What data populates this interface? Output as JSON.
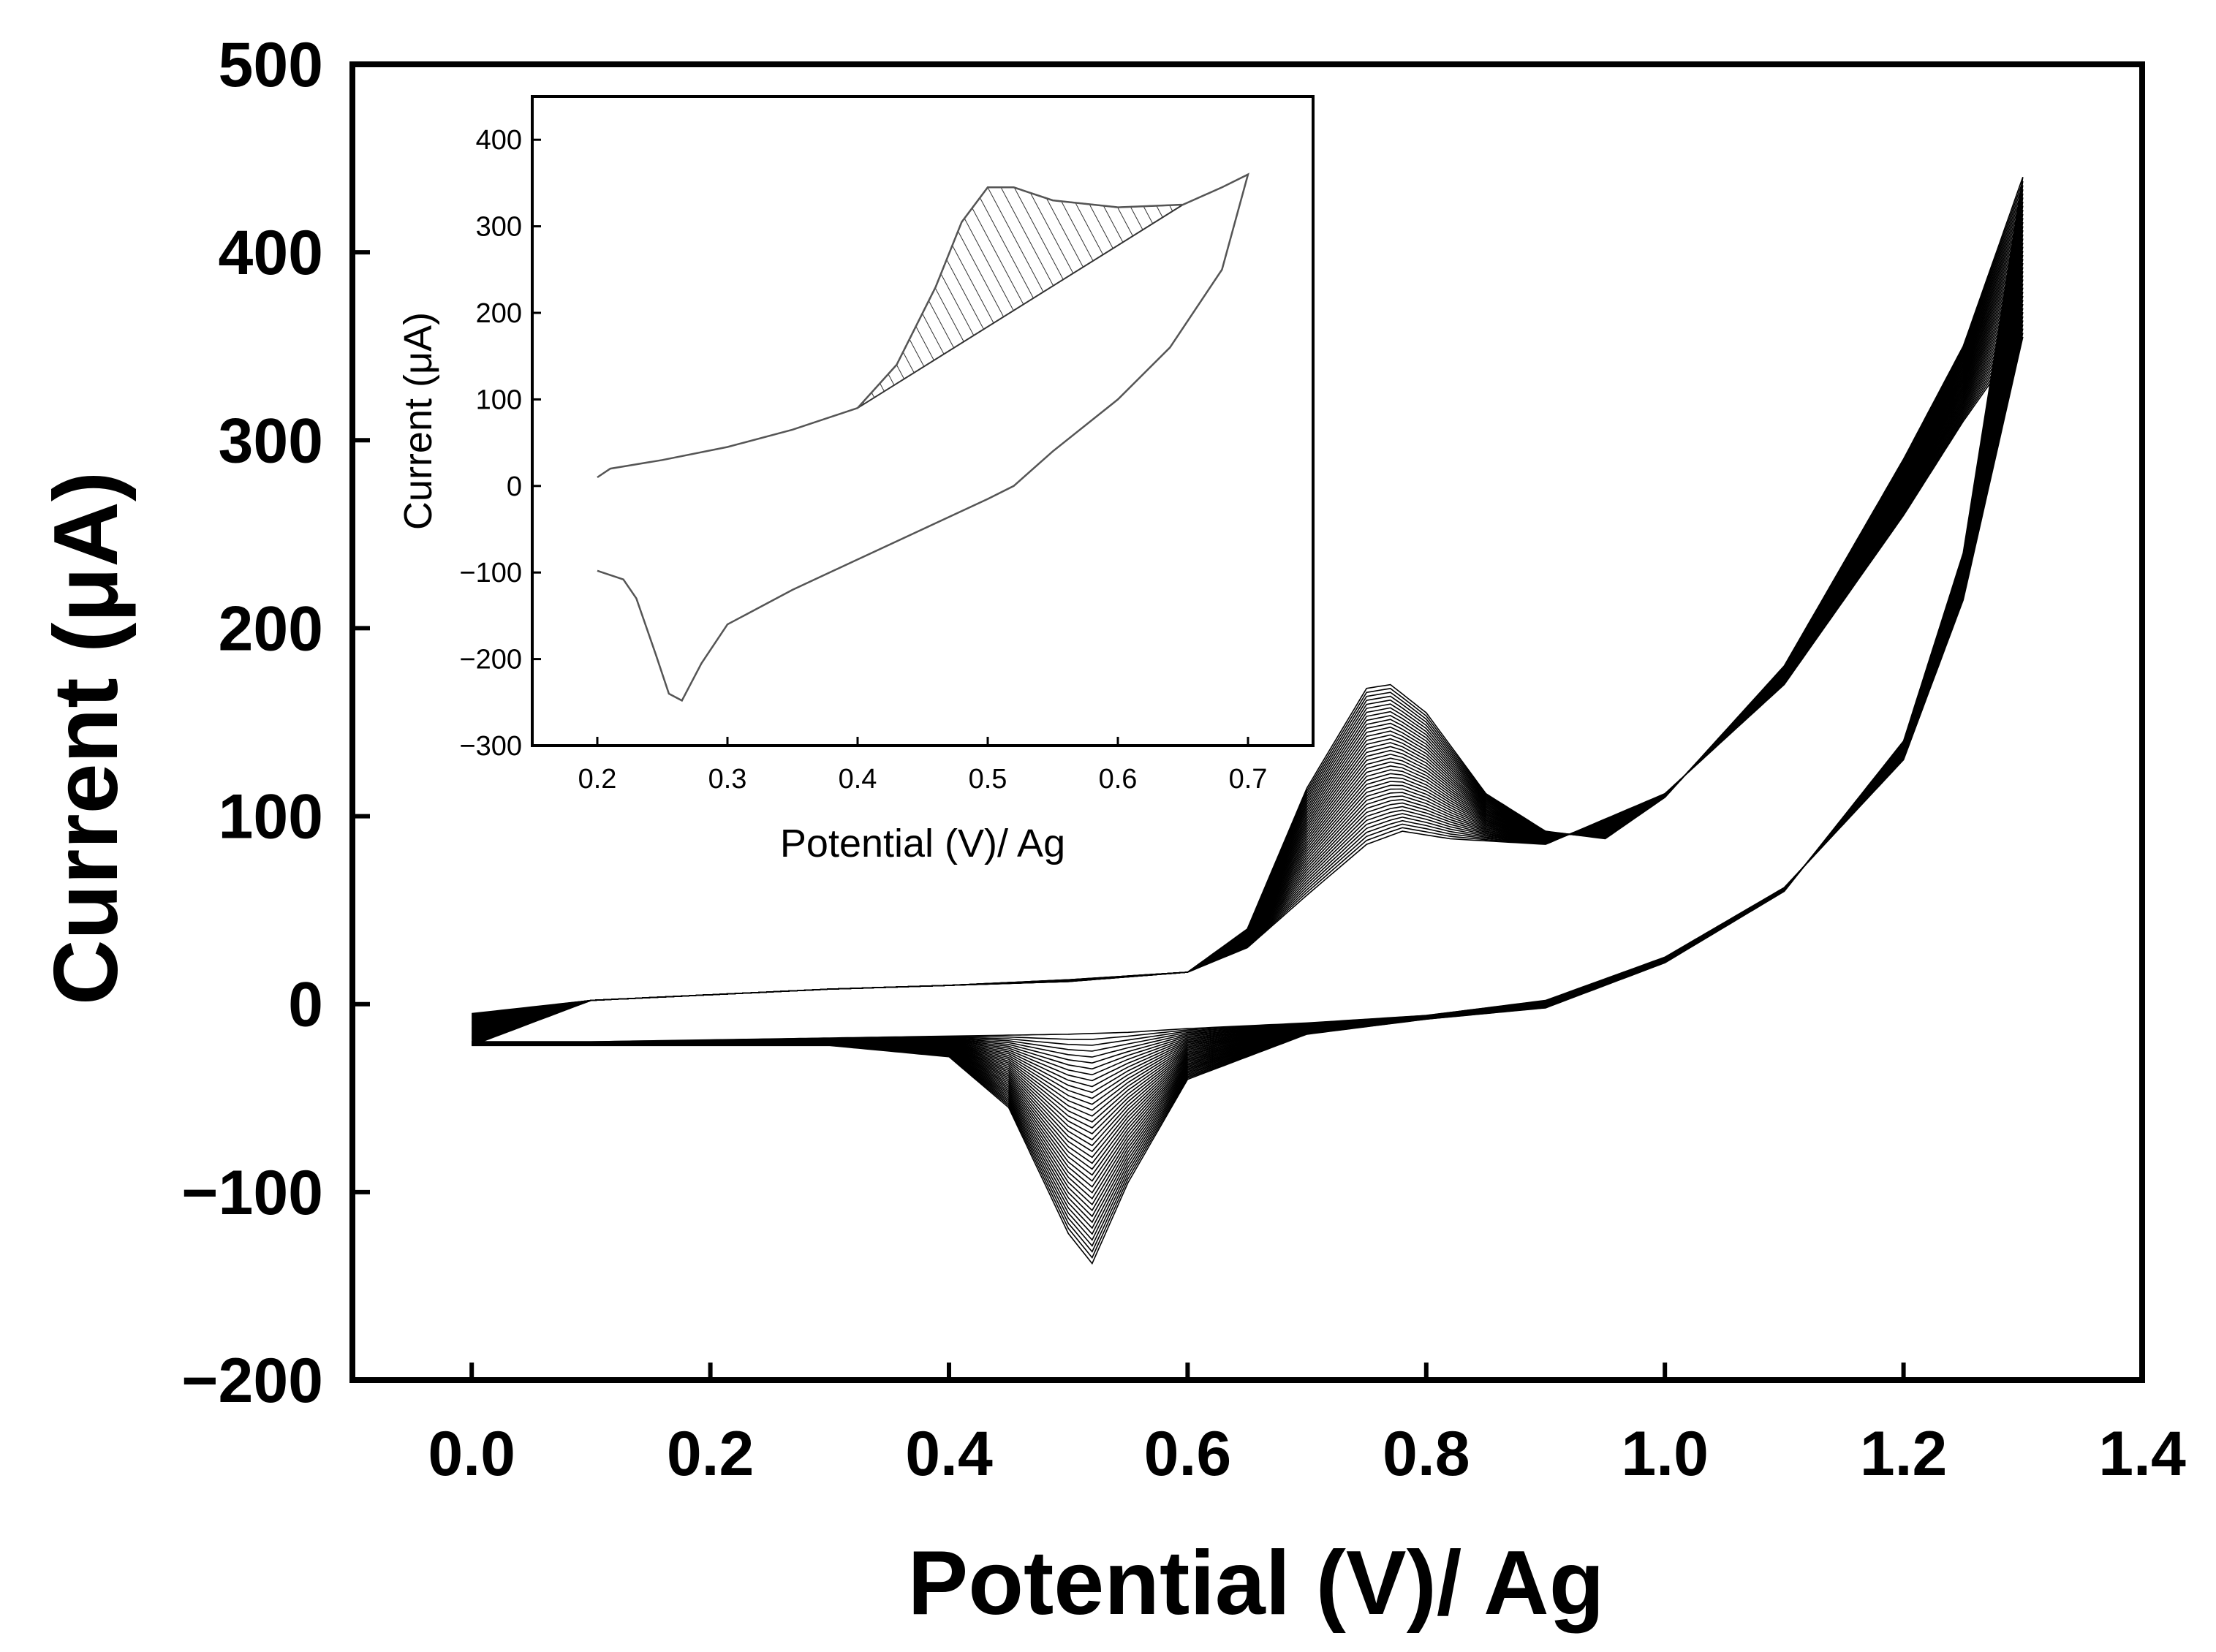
{
  "chart_data": [
    {
      "id": "main",
      "type": "line",
      "title": "",
      "xlabel": "Potential (V)/ Ag",
      "ylabel": "Current (μA)",
      "xlim": [
        -0.1,
        1.4
      ],
      "ylim": [
        -200,
        500
      ],
      "xticks": [
        0.0,
        0.2,
        0.4,
        0.6,
        0.8,
        1.0,
        1.2,
        1.4
      ],
      "xtick_labels": [
        "0.0",
        "0.2",
        "0.4",
        "0.6",
        "0.8",
        "1.0",
        "1.2",
        "1.4"
      ],
      "yticks": [
        -200,
        -100,
        0,
        100,
        200,
        300,
        400,
        500
      ],
      "ytick_labels": [
        "−200",
        "−100",
        "0",
        "100",
        "200",
        "300",
        "400",
        "500"
      ],
      "grid": false,
      "legend": "none",
      "color": "#000000",
      "description_note": "Repeated cyclic voltammetry scans; anodic peak grows with cycle number",
      "cycles_drawn": 40,
      "first_cycle": {
        "anodic": [
          [
            0.0,
            -5
          ],
          [
            0.1,
            2
          ],
          [
            0.2,
            5
          ],
          [
            0.3,
            8
          ],
          [
            0.4,
            10
          ],
          [
            0.5,
            13
          ],
          [
            0.6,
            17
          ],
          [
            0.65,
            30
          ],
          [
            0.7,
            58
          ],
          [
            0.75,
            85
          ],
          [
            0.78,
            92
          ],
          [
            0.82,
            88
          ],
          [
            0.9,
            85
          ],
          [
            1.0,
            112
          ],
          [
            1.1,
            170
          ],
          [
            1.2,
            260
          ],
          [
            1.25,
            310
          ],
          [
            1.3,
            355
          ]
        ],
        "cathodic": [
          [
            1.3,
            355
          ],
          [
            1.25,
            215
          ],
          [
            1.2,
            130
          ],
          [
            1.1,
            62
          ],
          [
            1.0,
            25
          ],
          [
            0.9,
            2
          ],
          [
            0.8,
            -6
          ],
          [
            0.7,
            -10
          ],
          [
            0.6,
            -13
          ],
          [
            0.55,
            -15
          ],
          [
            0.5,
            -16
          ],
          [
            0.4,
            -17
          ],
          [
            0.3,
            -18
          ],
          [
            0.2,
            -19
          ],
          [
            0.1,
            -20
          ],
          [
            0.0,
            -20
          ]
        ]
      },
      "last_cycle": {
        "anodic": [
          [
            0.0,
            -22
          ],
          [
            0.1,
            2
          ],
          [
            0.2,
            5
          ],
          [
            0.3,
            8
          ],
          [
            0.4,
            10
          ],
          [
            0.5,
            12
          ],
          [
            0.6,
            17
          ],
          [
            0.65,
            40
          ],
          [
            0.7,
            115
          ],
          [
            0.75,
            168
          ],
          [
            0.77,
            170
          ],
          [
            0.8,
            155
          ],
          [
            0.85,
            112
          ],
          [
            0.9,
            92
          ],
          [
            0.95,
            88
          ],
          [
            1.0,
            110
          ],
          [
            1.1,
            180
          ],
          [
            1.2,
            290
          ],
          [
            1.25,
            350
          ],
          [
            1.3,
            440
          ]
        ],
        "cathodic": [
          [
            1.3,
            440
          ],
          [
            1.25,
            240
          ],
          [
            1.2,
            140
          ],
          [
            1.1,
            60
          ],
          [
            1.0,
            22
          ],
          [
            0.9,
            -2
          ],
          [
            0.8,
            -8
          ],
          [
            0.7,
            -16
          ],
          [
            0.6,
            -40
          ],
          [
            0.55,
            -95
          ],
          [
            0.52,
            -138
          ],
          [
            0.5,
            -122
          ],
          [
            0.45,
            -55
          ],
          [
            0.4,
            -28
          ],
          [
            0.3,
            -22
          ],
          [
            0.2,
            -22
          ],
          [
            0.1,
            -22
          ],
          [
            0.0,
            -22
          ]
        ]
      }
    },
    {
      "id": "inset",
      "type": "line",
      "title": "",
      "xlabel": "Potential (V)/ Ag",
      "ylabel": "Current (μA)",
      "xlim": [
        0.15,
        0.75
      ],
      "ylim": [
        -300,
        450
      ],
      "xticks": [
        0.2,
        0.3,
        0.4,
        0.5,
        0.6,
        0.7
      ],
      "xtick_labels": [
        "0.2",
        "0.3",
        "0.4",
        "0.5",
        "0.6",
        "0.7"
      ],
      "yticks": [
        -300,
        -200,
        -100,
        0,
        100,
        200,
        300,
        400
      ],
      "ytick_labels": [
        "−300",
        "−200",
        "−100",
        "0",
        "100",
        "200",
        "300",
        "400"
      ],
      "grid": false,
      "legend": "none",
      "color": "#555555",
      "anodic": [
        [
          0.2,
          10
        ],
        [
          0.21,
          20
        ],
        [
          0.25,
          30
        ],
        [
          0.3,
          45
        ],
        [
          0.35,
          65
        ],
        [
          0.4,
          90
        ],
        [
          0.43,
          140
        ],
        [
          0.46,
          230
        ],
        [
          0.48,
          305
        ],
        [
          0.5,
          345
        ],
        [
          0.52,
          345
        ],
        [
          0.55,
          330
        ],
        [
          0.6,
          322
        ],
        [
          0.65,
          325
        ],
        [
          0.68,
          345
        ],
        [
          0.7,
          360
        ]
      ],
      "cathodic": [
        [
          0.7,
          360
        ],
        [
          0.68,
          250
        ],
        [
          0.64,
          160
        ],
        [
          0.6,
          100
        ],
        [
          0.55,
          40
        ],
        [
          0.52,
          0
        ],
        [
          0.5,
          -15
        ],
        [
          0.45,
          -50
        ],
        [
          0.4,
          -85
        ],
        [
          0.35,
          -120
        ],
        [
          0.3,
          -160
        ],
        [
          0.28,
          -205
        ],
        [
          0.265,
          -248
        ],
        [
          0.255,
          -240
        ],
        [
          0.245,
          -195
        ],
        [
          0.23,
          -130
        ],
        [
          0.22,
          -108
        ],
        [
          0.2,
          -98
        ]
      ],
      "hatched_peak_region": {
        "baseline_from": [
          0.4,
          90
        ],
        "baseline_to": [
          0.65,
          325
        ]
      }
    }
  ]
}
